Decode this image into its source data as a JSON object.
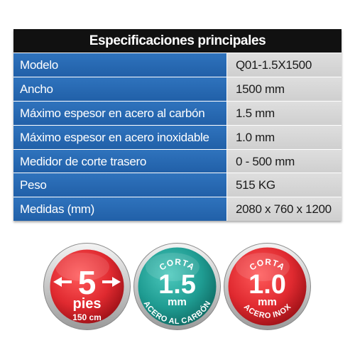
{
  "table": {
    "title": "Especificaciones principales",
    "rows": [
      {
        "label": "Modelo",
        "value": "Q01-1.5X1500"
      },
      {
        "label": "Ancho",
        "value": "1500 mm"
      },
      {
        "label": "Máximo espesor en acero al carbón",
        "value": "1.5 mm"
      },
      {
        "label": "Máximo espesor en acero inoxidable",
        "value": "1.0 mm"
      },
      {
        "label": "Medidor de corte trasero",
        "value": "0 - 500 mm"
      },
      {
        "label": "Peso",
        "value": "515 KG"
      },
      {
        "label": "Medidas (mm)",
        "value": "2080 x 760 x 1200"
      }
    ]
  },
  "badges": [
    {
      "number": "5",
      "unit": "pies",
      "sub": "150 cm",
      "color": "#d8222b"
    },
    {
      "top": "CORTA",
      "number": "1.5",
      "unit": "mm",
      "bottom": "ACERO AL CARBÓN",
      "color": "#1f9c92"
    },
    {
      "top": "CORTA",
      "number": "1.0",
      "unit": "mm",
      "bottom": "ACERO INOX",
      "color": "#d8222b"
    }
  ],
  "colors": {
    "header_bg": "#111111",
    "label_bg": "#2466ae",
    "value_bg": "#d6d6d6",
    "red": "#d8222b",
    "teal": "#1f9c92"
  }
}
